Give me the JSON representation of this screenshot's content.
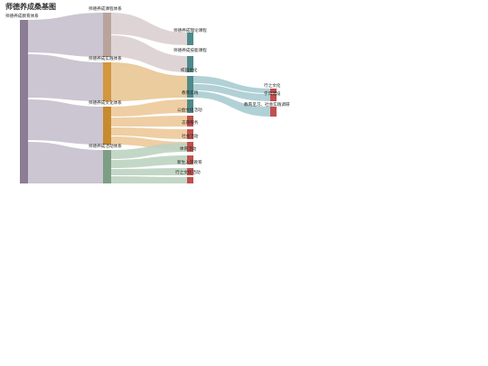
{
  "title": "师德养成桑基图",
  "colors": {
    "root": "#8b7d95",
    "course": "#b9a49d",
    "practice": "#d4963f",
    "culture": "#c88a30",
    "activity": "#7d9e84",
    "teal": "#4f8a8b",
    "red": "#c0504d",
    "link_root": "#c5c0cc",
    "link_course": "#dccfd0",
    "link_practice": "#e8c694",
    "link_culture": "#edc99a",
    "link_activity": "#bcd3c1",
    "link_teal": "#a9ccd2"
  },
  "nodes": {
    "root": "师德养成教育体系",
    "course": "师德养成课程体系",
    "practice": "师德养成实践体系",
    "culture": "师德养成文化体系",
    "activity": "师德养成活动体系",
    "theory": "师德养成理论课程",
    "skill": "师德养成技能课程",
    "campus": "校园文化",
    "service": "教育实践",
    "public": "公益文化活动",
    "volunteer": "志愿服务",
    "social": "社会活动",
    "sports": "体育活动",
    "newborn": "新生入学教育",
    "party": "行之文化活动",
    "act_a": "行之文化",
    "act_b": "学风建设",
    "act_c": "教育见习、社会实践调研"
  }
}
